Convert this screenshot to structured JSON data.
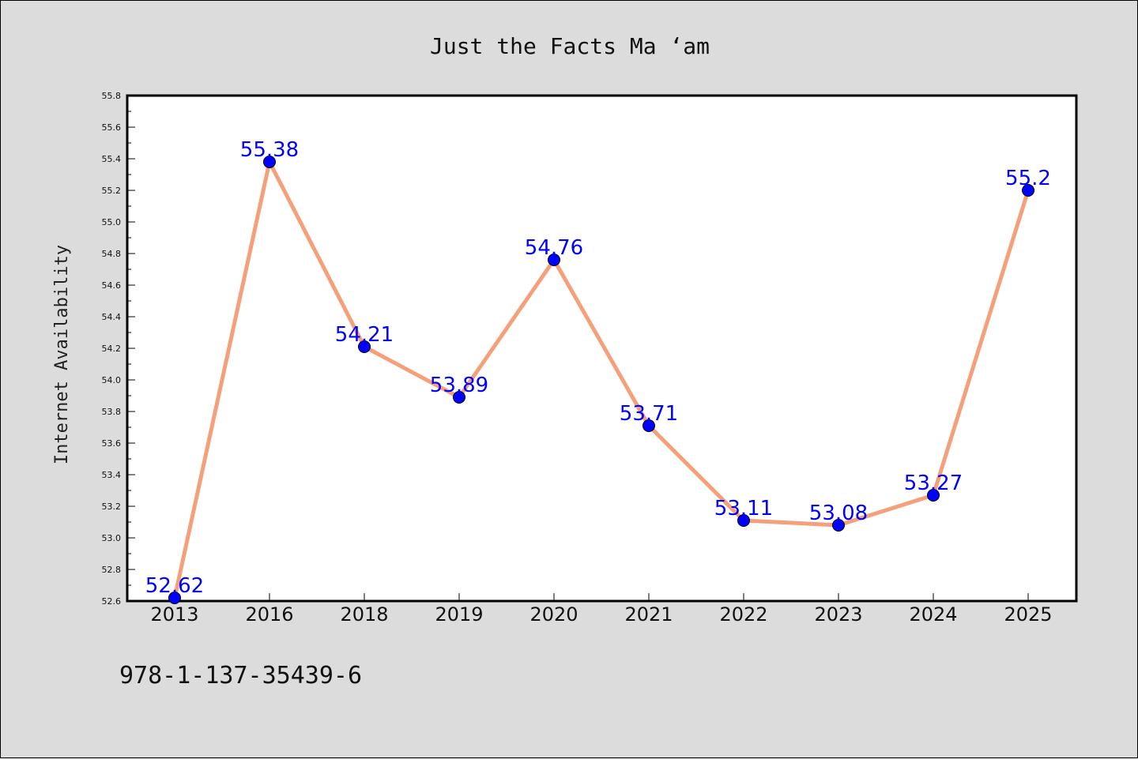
{
  "chart_data": {
    "type": "line",
    "title": "Just the Facts Ma ‘am",
    "ylabel": "Internet Availability",
    "xlabel": "",
    "categories": [
      "2013",
      "2016",
      "2018",
      "2019",
      "2020",
      "2021",
      "2022",
      "2023",
      "2024",
      "2025"
    ],
    "values": [
      52.62,
      55.38,
      54.21,
      53.89,
      54.76,
      53.71,
      53.11,
      53.08,
      53.27,
      55.2
    ],
    "data_labels": [
      "52.62",
      "55.38",
      "54.21",
      "53.89",
      "54.76",
      "53.71",
      "53.11",
      "53.08",
      "53.27",
      "55.2"
    ],
    "ylim": [
      52.6,
      55.8
    ],
    "yticks": [
      "52.6",
      "52.8",
      "53.0",
      "53.2",
      "53.4",
      "53.6",
      "53.8",
      "54.0",
      "54.2",
      "54.4",
      "54.6",
      "54.8",
      "55.0",
      "55.2",
      "55.4",
      "55.6",
      "55.8"
    ],
    "grid": false,
    "line_color": "#f4a07a",
    "marker_color": "#0000ff",
    "label_color": "#0000ff"
  },
  "footer": {
    "isbn": "978-1-137-35439-6"
  }
}
